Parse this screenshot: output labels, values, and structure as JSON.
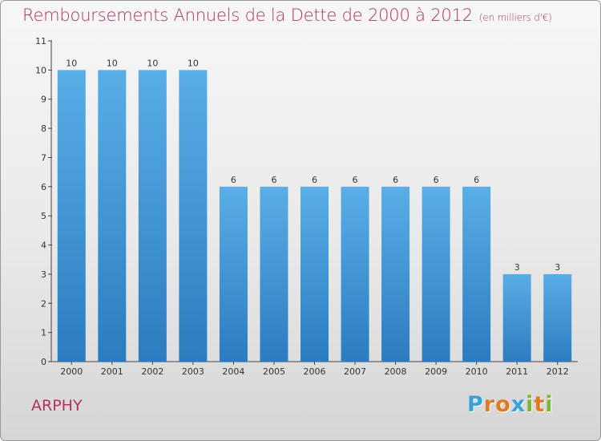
{
  "title": "Remboursements Annuels de la Dette de 2000 à 2012",
  "unit_note": "(en milliers d'€)",
  "commune": "ARPHY",
  "logo": {
    "letters": [
      "P",
      "r",
      "o",
      "x",
      "i",
      "t",
      "i"
    ],
    "colors": [
      "#3aa1d6",
      "#e07b22",
      "#e07b22",
      "#3aa1d6",
      "#7cb82f",
      "#e07b22",
      "#7cb82f"
    ]
  },
  "colors": {
    "bar_light": "#5aaee6",
    "bar_dark": "#2b7cc0",
    "title": "#b5315a"
  },
  "chart_data": {
    "type": "bar",
    "categories": [
      "2000",
      "2001",
      "2002",
      "2003",
      "2004",
      "2005",
      "2006",
      "2007",
      "2008",
      "2009",
      "2010",
      "2011",
      "2012"
    ],
    "values": [
      10,
      10,
      10,
      10,
      6,
      6,
      6,
      6,
      6,
      6,
      6,
      3,
      3
    ],
    "data_labels": [
      "10",
      "10",
      "10",
      "10",
      "6",
      "6",
      "6",
      "6",
      "6",
      "6",
      "6",
      "3",
      "3"
    ],
    "y_ticks": [
      0,
      1,
      2,
      3,
      4,
      5,
      6,
      7,
      8,
      9,
      10,
      11
    ],
    "ylim": [
      0,
      11
    ],
    "grid": false,
    "xlabel": "",
    "ylabel": ""
  }
}
